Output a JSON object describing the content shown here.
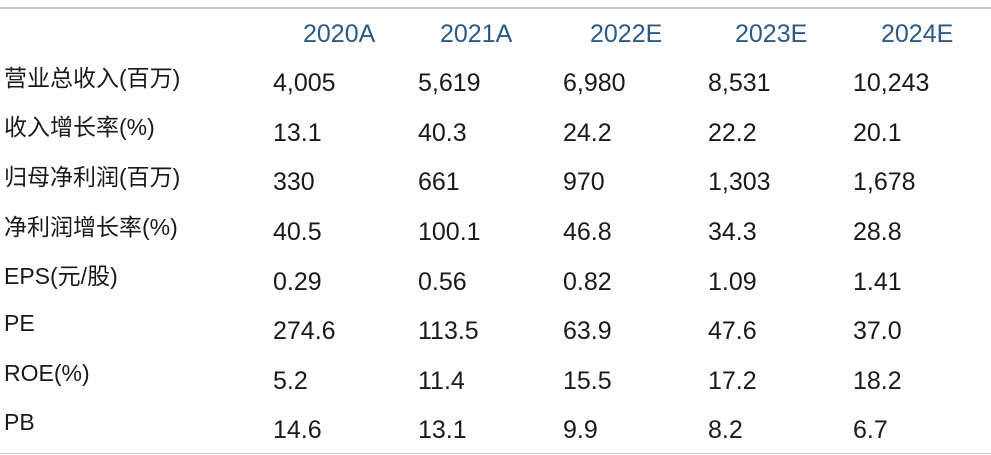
{
  "table": {
    "columns": [
      "",
      "2020A",
      "2021A",
      "2022E",
      "2023E",
      "2024E"
    ],
    "rows": [
      {
        "label": "营业总收入(百万)",
        "values": [
          "4,005",
          "5,619",
          "6,980",
          "8,531",
          "10,243"
        ]
      },
      {
        "label": "收入增长率(%)",
        "values": [
          "13.1",
          "40.3",
          "24.2",
          "22.2",
          "20.1"
        ]
      },
      {
        "label": "归母净利润(百万)",
        "values": [
          "330",
          "661",
          "970",
          "1,303",
          "1,678"
        ]
      },
      {
        "label": "净利润增长率(%)",
        "values": [
          "40.5",
          "100.1",
          "46.8",
          "34.3",
          "28.8"
        ]
      },
      {
        "label": "EPS(元/股)",
        "values": [
          "0.29",
          "0.56",
          "0.82",
          "1.09",
          "1.41"
        ]
      },
      {
        "label": "PE",
        "values": [
          "274.6",
          "113.5",
          "63.9",
          "47.6",
          "37.0"
        ]
      },
      {
        "label": "ROE(%)",
        "values": [
          "5.2",
          "11.4",
          "15.5",
          "17.2",
          "18.2"
        ]
      },
      {
        "label": "PB",
        "values": [
          "14.6",
          "13.1",
          "9.9",
          "8.2",
          "6.7"
        ]
      }
    ]
  },
  "colors": {
    "header_text": "#2b5a86",
    "body_text": "#1a1a1a",
    "rule": "#c8c8c8"
  }
}
